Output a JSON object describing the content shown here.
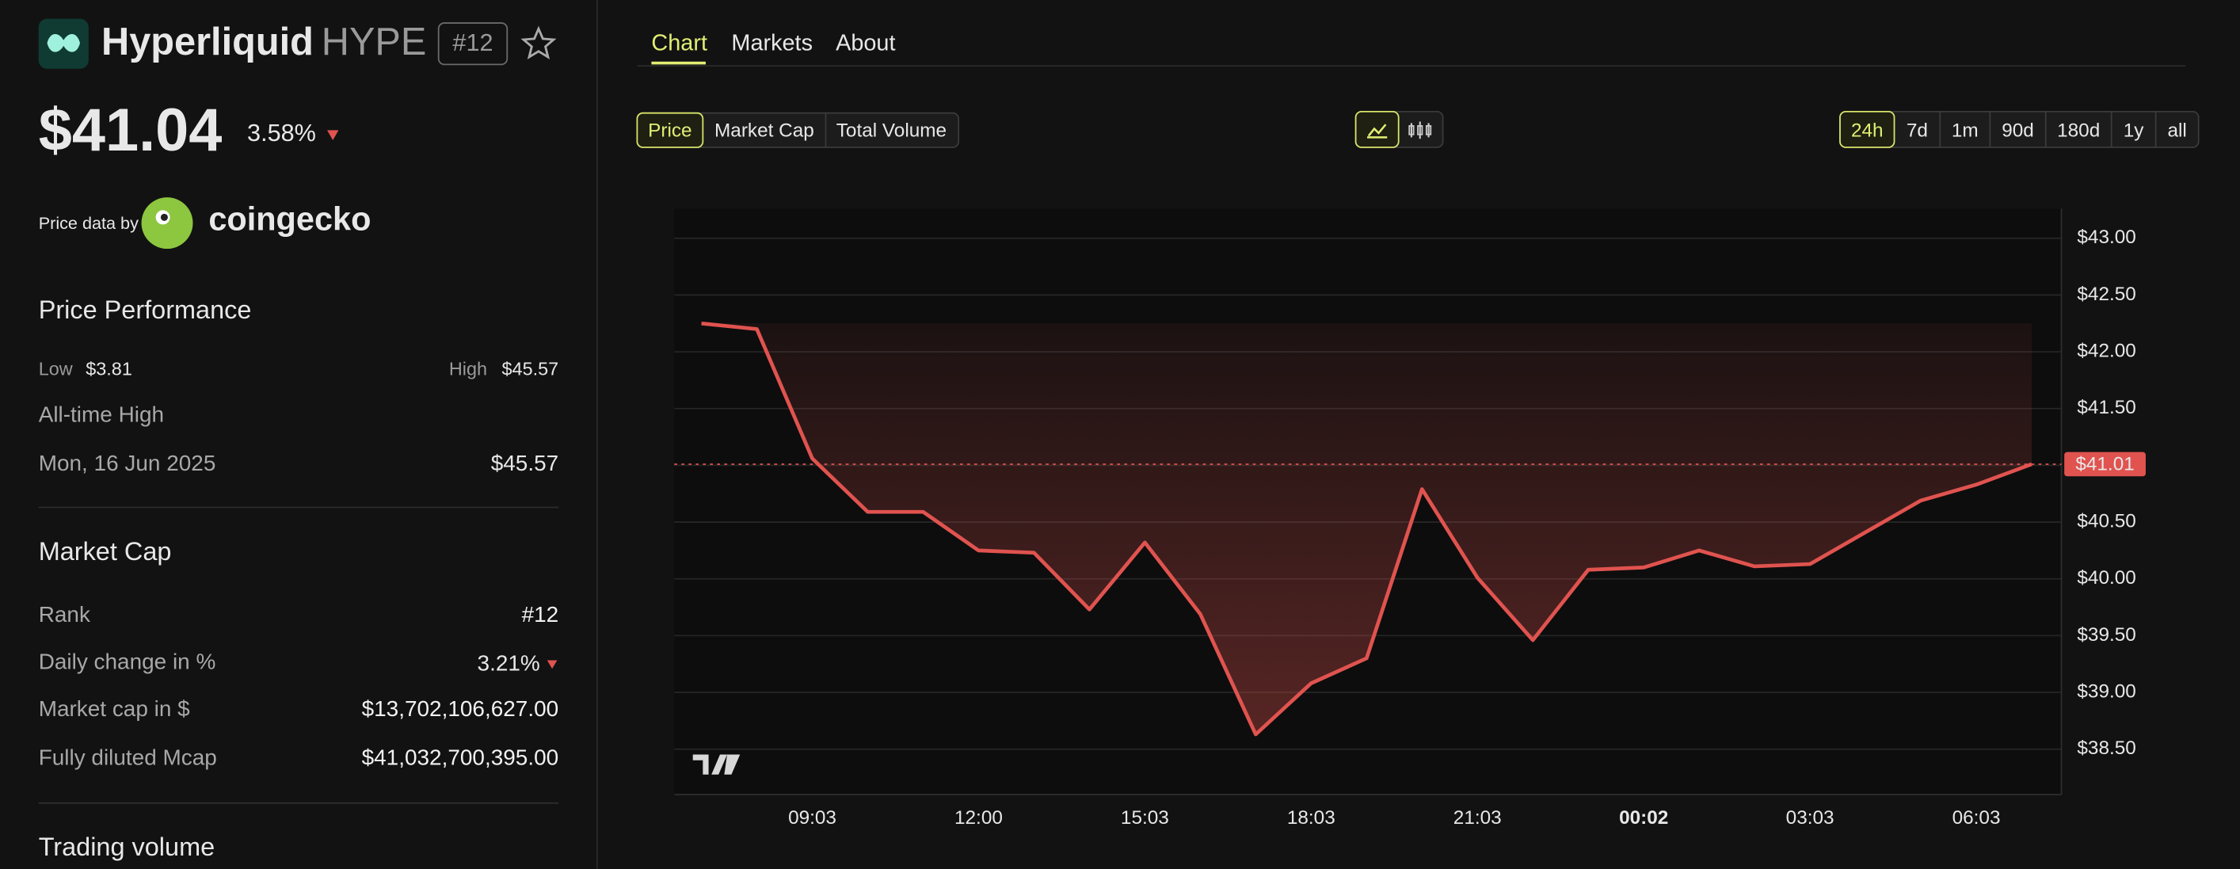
{
  "header": {
    "name": "Hyperliquid",
    "symbol": "HYPE",
    "rank": "#12",
    "price": "$41.04",
    "change": "3.58%",
    "price_data_by": "Price data by",
    "provider": "coingecko"
  },
  "price_performance": {
    "title": "Price Performance",
    "low_label": "Low",
    "low": "$3.81",
    "high_label": "High",
    "high": "$45.57",
    "ath_label": "All-time High",
    "ath_date": "Mon, 16 Jun 2025",
    "ath_value": "$45.57"
  },
  "market_cap": {
    "title": "Market Cap",
    "rows": [
      [
        "Rank",
        "#12"
      ],
      [
        "Daily change in %",
        "3.21%"
      ],
      [
        "Market cap in $",
        "$13,702,106,627.00"
      ],
      [
        "Fully diluted Mcap",
        "$41,032,700,395.00"
      ]
    ]
  },
  "trading_volume": {
    "title": "Trading volume"
  },
  "tabs": [
    "Chart",
    "Markets",
    "About"
  ],
  "metric_buttons": [
    "Price",
    "Market Cap",
    "Total Volume"
  ],
  "range_buttons": [
    "24h",
    "7d",
    "1m",
    "90d",
    "180d",
    "1y",
    "all"
  ],
  "chart_data": {
    "type": "line",
    "categories": [
      null,
      null,
      "09:03",
      null,
      null,
      "12:00",
      null,
      null,
      "15:03",
      null,
      null,
      "18:03",
      null,
      null,
      "21:03",
      null,
      null,
      "00:02",
      null,
      null,
      "03:03",
      null,
      null,
      "06:03",
      null
    ],
    "values": [
      42.25,
      42.2,
      41.06,
      40.59,
      40.59,
      40.25,
      40.23,
      39.73,
      40.32,
      39.69,
      38.63,
      39.08,
      39.3,
      40.79,
      40.01,
      39.46,
      40.08,
      40.1,
      40.25,
      40.11,
      40.13,
      40.41,
      40.69,
      40.83,
      41.01
    ],
    "color": "#e0534f",
    "ylim": [
      38.1,
      43.26
    ],
    "yticks": [
      {
        "value": 38.5,
        "label": "$38.50"
      },
      {
        "value": 39,
        "label": "$39.00"
      },
      {
        "value": 39.5,
        "label": "$39.50"
      },
      {
        "value": 40,
        "label": "$40.00"
      },
      {
        "value": 40.5,
        "label": "$40.50"
      },
      {
        "value": 41,
        "label": "$41.00"
      },
      {
        "value": 41.5,
        "label": "$41.50"
      },
      {
        "value": 42,
        "label": "$42.00"
      },
      {
        "value": 42.5,
        "label": "$42.50"
      },
      {
        "value": 43,
        "label": "$43.00"
      }
    ],
    "grid": true,
    "price_line": {
      "value": 41.01,
      "label": "$41.01"
    }
  }
}
